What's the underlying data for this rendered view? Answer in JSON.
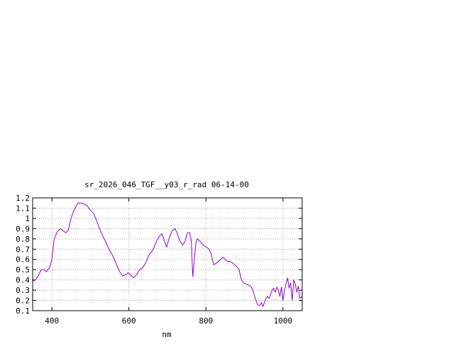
{
  "chart_data": {
    "type": "line",
    "title": "sr_2026_046_TGF__y03_r_rad 06-14-00",
    "xlabel": "nm",
    "ylabel": "",
    "xlim": [
      350,
      1050
    ],
    "ylim": [
      0.1,
      1.2
    ],
    "x_ticks": [
      400,
      600,
      800,
      1000
    ],
    "y_ticks": [
      0.1,
      0.2,
      0.3,
      0.4,
      0.5,
      0.6,
      0.7,
      0.8,
      0.9,
      1,
      1.1,
      1.2
    ],
    "grid": true,
    "series": [
      {
        "color": "#9400d3",
        "x": [
          350,
          358,
          366,
          372,
          380,
          386,
          394,
          400,
          406,
          414,
          422,
          430,
          436,
          442,
          450,
          454,
          460,
          468,
          476,
          484,
          492,
          500,
          508,
          516,
          524,
          532,
          540,
          548,
          556,
          562,
          568,
          576,
          584,
          592,
          598,
          604,
          612,
          620,
          628,
          636,
          644,
          652,
          660,
          666,
          672,
          680,
          686,
          692,
          698,
          704,
          712,
          720,
          726,
          732,
          740,
          746,
          752,
          758,
          762,
          764,
          766,
          770,
          774,
          778,
          784,
          790,
          796,
          802,
          808,
          814,
          820,
          826,
          832,
          838,
          844,
          850,
          856,
          862,
          868,
          874,
          880,
          886,
          892,
          898,
          904,
          910,
          916,
          922,
          928,
          934,
          940,
          944,
          948,
          952,
          956,
          960,
          964,
          968,
          972,
          976,
          980,
          984,
          988,
          992,
          996,
          1000,
          1004,
          1008,
          1012,
          1016,
          1020,
          1024,
          1028,
          1032,
          1036,
          1040,
          1044,
          1050
        ],
        "y": [
          0.39,
          0.4,
          0.45,
          0.5,
          0.5,
          0.48,
          0.52,
          0.6,
          0.8,
          0.87,
          0.9,
          0.88,
          0.86,
          0.88,
          1.0,
          1.05,
          1.1,
          1.15,
          1.15,
          1.14,
          1.12,
          1.08,
          1.05,
          0.98,
          0.9,
          0.83,
          0.77,
          0.7,
          0.65,
          0.6,
          0.55,
          0.48,
          0.44,
          0.45,
          0.47,
          0.45,
          0.42,
          0.45,
          0.5,
          0.52,
          0.57,
          0.64,
          0.68,
          0.72,
          0.78,
          0.83,
          0.85,
          0.78,
          0.72,
          0.8,
          0.88,
          0.9,
          0.85,
          0.78,
          0.74,
          0.78,
          0.86,
          0.86,
          0.78,
          0.6,
          0.43,
          0.6,
          0.76,
          0.8,
          0.78,
          0.75,
          0.73,
          0.72,
          0.7,
          0.65,
          0.55,
          0.56,
          0.58,
          0.6,
          0.62,
          0.6,
          0.58,
          0.58,
          0.57,
          0.55,
          0.53,
          0.5,
          0.4,
          0.37,
          0.36,
          0.35,
          0.34,
          0.3,
          0.22,
          0.16,
          0.15,
          0.18,
          0.14,
          0.18,
          0.22,
          0.24,
          0.22,
          0.26,
          0.3,
          0.32,
          0.28,
          0.33,
          0.3,
          0.24,
          0.33,
          0.2,
          0.3,
          0.36,
          0.42,
          0.32,
          0.37,
          0.2,
          0.4,
          0.36,
          0.28,
          0.34,
          0.22,
          0.24
        ]
      }
    ]
  }
}
